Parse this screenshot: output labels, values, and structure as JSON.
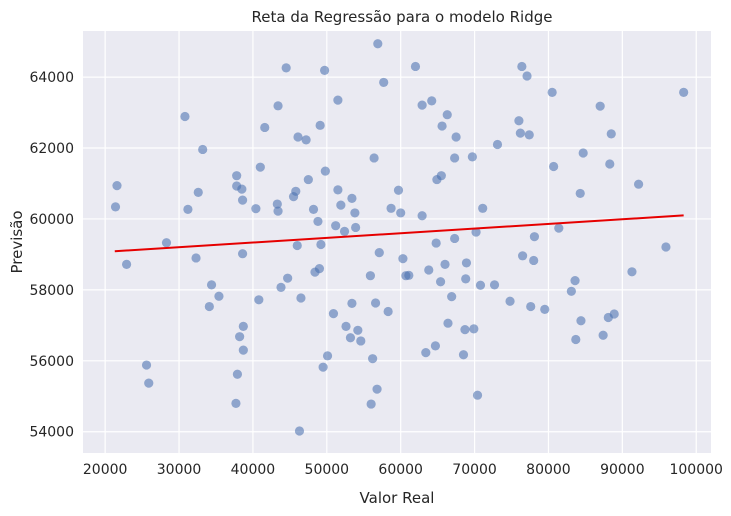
{
  "chart_data": {
    "type": "scatter",
    "title": "Reta da Regressão para o modelo Ridge",
    "xlabel": "Valor Real",
    "ylabel": "Previsão",
    "xlim": [
      17000,
      102000
    ],
    "ylim": [
      53400,
      65300
    ],
    "xticks": [
      20000,
      30000,
      40000,
      50000,
      60000,
      70000,
      80000,
      90000,
      100000
    ],
    "yticks": [
      54000,
      56000,
      58000,
      60000,
      62000,
      64000
    ],
    "grid": true,
    "colors": {
      "background": "#eaeaf2",
      "grid": "#ffffff",
      "points": "#4c72b0",
      "line": "#e60000"
    },
    "regression_line": {
      "x": [
        21300,
        98300
      ],
      "y": [
        59090,
        60100
      ]
    },
    "points": [
      [
        21400,
        60340
      ],
      [
        21600,
        60940
      ],
      [
        22900,
        58720
      ],
      [
        25600,
        55880
      ],
      [
        25900,
        55370
      ],
      [
        28300,
        59330
      ],
      [
        30800,
        62890
      ],
      [
        31200,
        60270
      ],
      [
        32300,
        58900
      ],
      [
        32600,
        60750
      ],
      [
        33200,
        61960
      ],
      [
        34100,
        57530
      ],
      [
        34400,
        58140
      ],
      [
        35400,
        57820
      ],
      [
        37700,
        54800
      ],
      [
        37800,
        61220
      ],
      [
        37800,
        60930
      ],
      [
        37900,
        55620
      ],
      [
        38200,
        56680
      ],
      [
        38500,
        60840
      ],
      [
        38600,
        59020
      ],
      [
        38600,
        60530
      ],
      [
        38700,
        56300
      ],
      [
        38700,
        56970
      ],
      [
        40400,
        60290
      ],
      [
        40800,
        57720
      ],
      [
        41000,
        61460
      ],
      [
        41600,
        62580
      ],
      [
        43300,
        60420
      ],
      [
        43400,
        63190
      ],
      [
        43400,
        60220
      ],
      [
        43800,
        58070
      ],
      [
        44500,
        64260
      ],
      [
        44700,
        58330
      ],
      [
        45500,
        60630
      ],
      [
        45800,
        60780
      ],
      [
        46000,
        59250
      ],
      [
        46100,
        62310
      ],
      [
        46300,
        54020
      ],
      [
        46500,
        57770
      ],
      [
        47200,
        62230
      ],
      [
        47500,
        61110
      ],
      [
        48200,
        60270
      ],
      [
        48400,
        58500
      ],
      [
        48800,
        59930
      ],
      [
        49000,
        58600
      ],
      [
        49100,
        62640
      ],
      [
        49200,
        59280
      ],
      [
        49500,
        55820
      ],
      [
        49700,
        64190
      ],
      [
        49800,
        61350
      ],
      [
        50100,
        56140
      ],
      [
        50900,
        57330
      ],
      [
        51200,
        59810
      ],
      [
        51500,
        63350
      ],
      [
        51500,
        60820
      ],
      [
        51900,
        60390
      ],
      [
        52400,
        59650
      ],
      [
        52600,
        56970
      ],
      [
        53200,
        56650
      ],
      [
        53400,
        60580
      ],
      [
        53400,
        57620
      ],
      [
        53800,
        60170
      ],
      [
        53900,
        59760
      ],
      [
        54200,
        56860
      ],
      [
        54600,
        56560
      ],
      [
        55900,
        58400
      ],
      [
        56000,
        54780
      ],
      [
        56200,
        56060
      ],
      [
        56400,
        61720
      ],
      [
        56600,
        57630
      ],
      [
        56800,
        55200
      ],
      [
        56900,
        64940
      ],
      [
        57100,
        59050
      ],
      [
        57700,
        63850
      ],
      [
        58300,
        57390
      ],
      [
        58700,
        60300
      ],
      [
        59700,
        60810
      ],
      [
        60000,
        60170
      ],
      [
        60300,
        58880
      ],
      [
        60700,
        58400
      ],
      [
        61100,
        58410
      ],
      [
        62000,
        64300
      ],
      [
        62900,
        60090
      ],
      [
        62900,
        63210
      ],
      [
        63400,
        56230
      ],
      [
        63800,
        58560
      ],
      [
        64200,
        63330
      ],
      [
        64700,
        56420
      ],
      [
        64800,
        59320
      ],
      [
        64900,
        61110
      ],
      [
        65400,
        58230
      ],
      [
        65500,
        61220
      ],
      [
        65600,
        62620
      ],
      [
        66000,
        58720
      ],
      [
        66300,
        62940
      ],
      [
        66400,
        57060
      ],
      [
        66900,
        57810
      ],
      [
        67300,
        61720
      ],
      [
        67300,
        59450
      ],
      [
        67500,
        62310
      ],
      [
        68500,
        56170
      ],
      [
        68700,
        56880
      ],
      [
        68800,
        58310
      ],
      [
        68900,
        58760
      ],
      [
        69700,
        61750
      ],
      [
        69900,
        56900
      ],
      [
        70200,
        59630
      ],
      [
        70400,
        55030
      ],
      [
        70800,
        58130
      ],
      [
        71100,
        60300
      ],
      [
        72700,
        58140
      ],
      [
        73100,
        62100
      ],
      [
        74800,
        57680
      ],
      [
        76000,
        62770
      ],
      [
        76200,
        62420
      ],
      [
        76400,
        64300
      ],
      [
        76500,
        58960
      ],
      [
        77100,
        64030
      ],
      [
        77400,
        62370
      ],
      [
        77600,
        57530
      ],
      [
        78000,
        58830
      ],
      [
        78100,
        59500
      ],
      [
        79500,
        57450
      ],
      [
        80500,
        63570
      ],
      [
        80700,
        61480
      ],
      [
        81400,
        59740
      ],
      [
        83100,
        57960
      ],
      [
        83600,
        58260
      ],
      [
        83700,
        56600
      ],
      [
        84300,
        60720
      ],
      [
        84400,
        57130
      ],
      [
        84700,
        61860
      ],
      [
        87000,
        63180
      ],
      [
        87400,
        56720
      ],
      [
        88100,
        57220
      ],
      [
        88300,
        61550
      ],
      [
        88500,
        62400
      ],
      [
        88900,
        57320
      ],
      [
        91300,
        58510
      ],
      [
        92200,
        60980
      ],
      [
        95900,
        59210
      ],
      [
        98300,
        63570
      ]
    ]
  }
}
